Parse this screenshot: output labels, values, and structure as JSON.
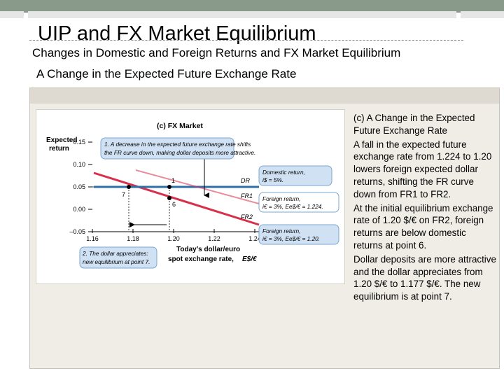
{
  "slide": {
    "title": "UIP and FX Market Equilibrium",
    "subtitle": "Changes in Domestic and Foreign Returns and FX Market Equilibrium",
    "heading": "A Change in the Expected Future Exchange Rate"
  },
  "figure": {
    "label": "(c) FX Market",
    "ylabel_line1": "Expected",
    "ylabel_line2": "return",
    "xlabel_line1": "Today’s dollar/euro",
    "xlabel_line2": "spot exchange rate,",
    "xlabel_symbol": "E$/€",
    "y_ticks": [
      "0.15",
      "0.10",
      "0.05",
      "0.00",
      "–0.05"
    ],
    "x_ticks": [
      "1.16",
      "1.18",
      "1.20",
      "1.22",
      "1.24"
    ],
    "note1_line1": "1. A decrease in the expected future exchange rate shifts",
    "note1_line2": "the FR curve down, making dollar deposits more attractive.",
    "note2_line1": "2. The dollar appreciates:",
    "note2_line2": "new equilibrium at point 7.",
    "domestic_line1": "Domestic return,",
    "domestic_line2": "i$ = 5%.",
    "foreign1_line1": "Foreign return,",
    "foreign1_line2": "i€ = 3%, Ee$/€ = 1.224.",
    "foreign2_line1": "Foreign return,",
    "foreign2_line2": "i€ = 3%, Ee$/€ = 1.20.",
    "curve_dr": "DR",
    "curve_fr1": "FR1",
    "curve_fr2": "FR2",
    "point_1": "1",
    "point_6": "6",
    "point_7": "7",
    "colors": {
      "domestic": "#2f6fa8",
      "foreign": "#d8304a",
      "callout": "#cfe1f3",
      "callout_border": "#7aa7d2"
    }
  },
  "description": {
    "p1": "(c) A Change in the Expected Future Exchange Rate",
    "p2": "A fall in the expected future exchange rate from 1.224 to 1.20 lowers foreign expected dollar returns, shifting the FR curve down from FR1 to FR2.",
    "p3": "At the initial equilibrium exchange rate of 1.20 $/€ on FR2, foreign returns are below domestic returns at point 6.",
    "p4": "Dollar deposits are more attractive and the dollar appreciates from 1.20 $/€ to 1.177 $/€. The new equilibrium is at point 7."
  }
}
